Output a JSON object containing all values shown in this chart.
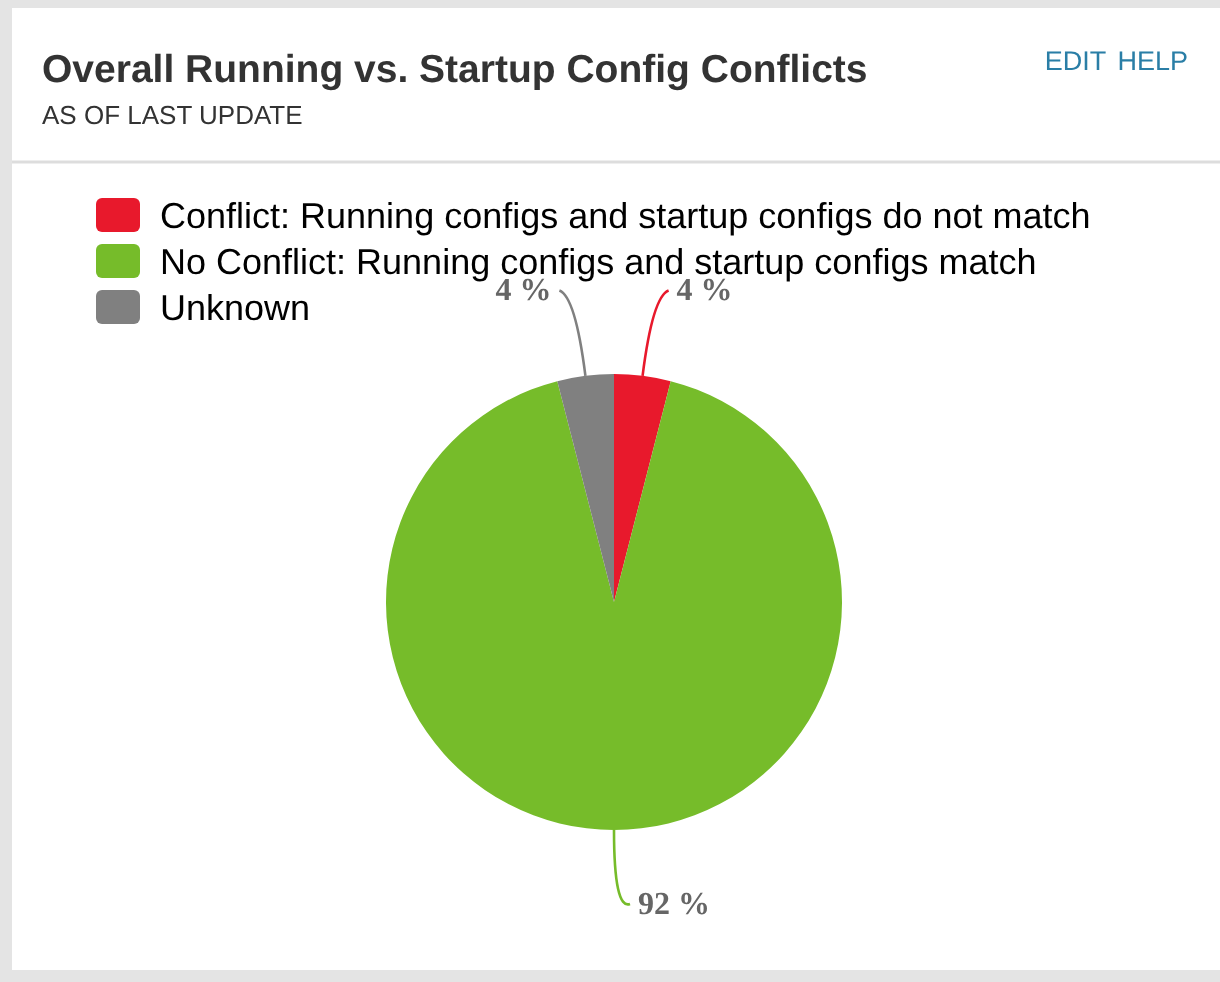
{
  "chart_data": {
    "type": "pie",
    "title": "Overall Running vs. Startup Config Conflicts",
    "subtitle": "AS OF LAST UPDATE",
    "annotations": [
      "EDIT",
      "HELP"
    ],
    "categories": [
      "Conflict: Running configs and startup configs do not match",
      "No Conflict: Running configs and startup configs match",
      "Unknown"
    ],
    "values": [
      4,
      92,
      4
    ],
    "colors": [
      "#e8192c",
      "#76bc2a",
      "#808080"
    ],
    "value_labels": [
      "4 %",
      "92 %",
      "4 %"
    ],
    "legend": "top left"
  }
}
